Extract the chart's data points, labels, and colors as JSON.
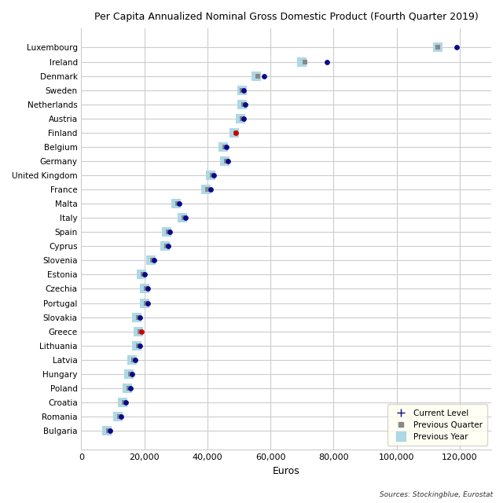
{
  "title": "Per Capita Annualized Nominal Gross Domestic Product (Fourth Quarter 2019)",
  "xlabel": "Euros",
  "source": "Sources: Stockingblue, Eurostat",
  "countries": [
    "Luxembourg",
    "Ireland",
    "Denmark",
    "Sweden",
    "Netherlands",
    "Austria",
    "Finland",
    "Belgium",
    "Germany",
    "United Kingdom",
    "France",
    "Malta",
    "Italy",
    "Spain",
    "Cyprus",
    "Slovenia",
    "Estonia",
    "Czechia",
    "Portugal",
    "Slovakia",
    "Greece",
    "Lithuania",
    "Latvia",
    "Hungary",
    "Poland",
    "Croatia",
    "Romania",
    "Bulgaria"
  ],
  "current_level": [
    119000,
    78000,
    58000,
    51500,
    52000,
    51500,
    49000,
    46000,
    46500,
    42000,
    41000,
    31000,
    33000,
    28000,
    27500,
    23000,
    20000,
    21000,
    21000,
    18500,
    19000,
    18500,
    17000,
    16000,
    15500,
    14000,
    12500,
    9000
  ],
  "previous_quarter": [
    113000,
    71000,
    56000,
    51000,
    51500,
    51000,
    49000,
    45500,
    46000,
    41500,
    40000,
    30500,
    32500,
    27500,
    27000,
    22500,
    19500,
    20500,
    20500,
    18000,
    18500,
    18000,
    16500,
    15500,
    15000,
    13500,
    12000,
    8500
  ],
  "previous_year": [
    113000,
    70000,
    55500,
    51000,
    51000,
    50500,
    48500,
    45000,
    45500,
    41000,
    39500,
    30000,
    32000,
    27000,
    26500,
    22000,
    19000,
    20000,
    20000,
    17500,
    18000,
    17500,
    16000,
    15000,
    14500,
    13000,
    11500,
    8000
  ],
  "finland_color": "#cc0000",
  "greece_color": "#cc0000",
  "current_color": "#0a0a8a",
  "prev_quarter_color": "#888888",
  "prev_year_color": "#add8e6",
  "bg_color": "#ffffff",
  "grid_color": "#cccccc",
  "xlim": [
    0,
    130000
  ],
  "xticks": [
    0,
    20000,
    40000,
    60000,
    80000,
    100000,
    120000
  ]
}
